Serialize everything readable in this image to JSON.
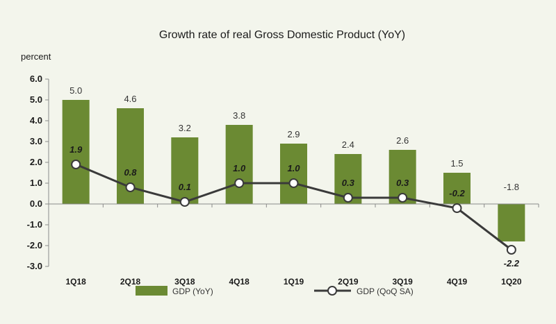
{
  "chart_data": {
    "type": "bar",
    "title": "Growth rate of real Gross Domestic Product (YoY)",
    "ylabel": "percent",
    "ylim": [
      -3.0,
      6.0
    ],
    "yticks": [
      "6.0",
      "5.0",
      "4.0",
      "3.0",
      "2.0",
      "1.0",
      "0.0",
      "-1.0",
      "-2.0",
      "-3.0"
    ],
    "categories": [
      "1Q18",
      "2Q18",
      "3Q18",
      "4Q18",
      "1Q19",
      "2Q19",
      "3Q19",
      "4Q19",
      "1Q20"
    ],
    "series": [
      {
        "name": "GDP (YoY)",
        "kind": "bar",
        "color": "#6b8a33",
        "values": [
          5.0,
          4.6,
          3.2,
          3.8,
          2.9,
          2.4,
          2.6,
          1.5,
          -1.8
        ],
        "labels": [
          "5.0",
          "4.6",
          "3.2",
          "3.8",
          "2.9",
          "2.4",
          "2.6",
          "1.5",
          "-1.8"
        ]
      },
      {
        "name": "GDP (QoQ SA)",
        "kind": "line",
        "color": "#3a3a3a",
        "values": [
          1.9,
          0.8,
          0.1,
          1.0,
          1.0,
          0.3,
          0.3,
          -0.2,
          -2.2
        ],
        "labels": [
          "1.9",
          "0.8",
          "0.1",
          "1.0",
          "1.0",
          "0.3",
          "0.3",
          "-0.2",
          "-2.2"
        ]
      }
    ],
    "grid": false,
    "legend": "bottom"
  }
}
